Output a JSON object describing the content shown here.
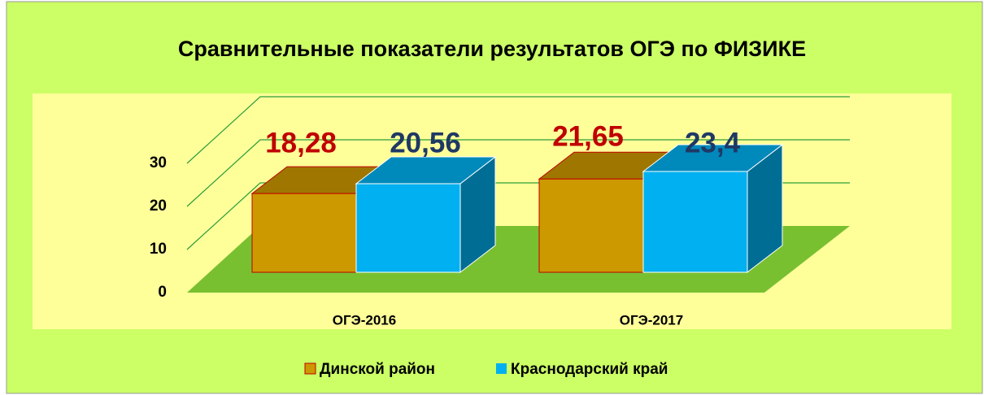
{
  "chart_data": {
    "type": "bar3d",
    "title": "Сравнительные показатели результатов ОГЭ по ФИЗИКЕ",
    "categories": [
      "ОГЭ-2016",
      "ОГЭ-2017"
    ],
    "series": [
      {
        "name": "Динской район",
        "color": "#cc9900",
        "label_color": "#c00000",
        "values": [
          18.28,
          21.65
        ],
        "value_labels": [
          "18,28",
          "21,65"
        ]
      },
      {
        "name": "Краснодарский край",
        "color": "#00b0f0",
        "label_color": "#1f3864",
        "values": [
          20.56,
          23.4
        ],
        "value_labels": [
          "20,56",
          "23,4"
        ]
      }
    ],
    "ylim": [
      0,
      30
    ],
    "yticks": [
      0,
      10,
      20,
      30
    ],
    "grid": true,
    "legend": "bottom"
  }
}
